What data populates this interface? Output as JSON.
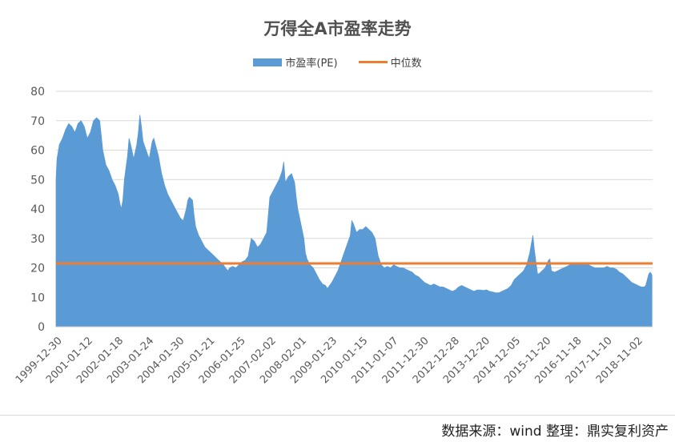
{
  "title": "万得全A市盈率走势",
  "legend": {
    "area_label": "市盈率(PE)",
    "line_label": "中位数"
  },
  "source_note": "数据来源：wind  整理：鼎实复利资产",
  "colors": {
    "area": "#5b9bd5",
    "median": "#ed7d31",
    "grid": "#d9d9d9"
  },
  "chart_data": {
    "type": "area",
    "title": "万得全A市盈率走势",
    "ylim": [
      0,
      80
    ],
    "yticks": [
      0,
      10,
      20,
      30,
      40,
      50,
      60,
      70,
      80
    ],
    "grid": true,
    "legend_position": "top",
    "x_tick_labels": [
      "1999-12-30",
      "2001-01-12",
      "2002-01-18",
      "2003-01-24",
      "2004-01-30",
      "2005-01-21",
      "2006-01-25",
      "2007-02-02",
      "2008-02-01",
      "2009-01-23",
      "2010-01-15",
      "2011-01-07",
      "2011-12-30",
      "2012-12-28",
      "2013-12-20",
      "2014-12-05",
      "2015-11-20",
      "2016-11-18",
      "2017-11-10",
      "2018-11-02"
    ],
    "series": [
      {
        "name": "市盈率(PE)",
        "type": "area",
        "points": [
          [
            1999.99,
            50
          ],
          [
            2000.02,
            57
          ],
          [
            2000.1,
            62
          ],
          [
            2000.2,
            64
          ],
          [
            2000.3,
            67
          ],
          [
            2000.4,
            69
          ],
          [
            2000.5,
            68
          ],
          [
            2000.6,
            66
          ],
          [
            2000.7,
            69
          ],
          [
            2000.8,
            70
          ],
          [
            2000.9,
            68
          ],
          [
            2001.0,
            64
          ],
          [
            2001.1,
            66
          ],
          [
            2001.2,
            70
          ],
          [
            2001.3,
            71
          ],
          [
            2001.4,
            70
          ],
          [
            2001.45,
            65
          ],
          [
            2001.5,
            60
          ],
          [
            2001.6,
            55
          ],
          [
            2001.7,
            53
          ],
          [
            2001.8,
            50
          ],
          [
            2001.9,
            48
          ],
          [
            2002.0,
            45
          ],
          [
            2002.05,
            42
          ],
          [
            2002.1,
            40
          ],
          [
            2002.15,
            43
          ],
          [
            2002.2,
            50
          ],
          [
            2002.3,
            58
          ],
          [
            2002.35,
            64
          ],
          [
            2002.4,
            62
          ],
          [
            2002.5,
            57
          ],
          [
            2002.6,
            62
          ],
          [
            2002.65,
            66
          ],
          [
            2002.7,
            72
          ],
          [
            2002.75,
            68
          ],
          [
            2002.8,
            63
          ],
          [
            2002.9,
            60
          ],
          [
            2003.0,
            57
          ],
          [
            2003.1,
            63
          ],
          [
            2003.15,
            64
          ],
          [
            2003.2,
            62
          ],
          [
            2003.3,
            58
          ],
          [
            2003.4,
            52
          ],
          [
            2003.5,
            48
          ],
          [
            2003.6,
            45
          ],
          [
            2003.7,
            43
          ],
          [
            2003.8,
            41
          ],
          [
            2003.9,
            39
          ],
          [
            2004.0,
            37
          ],
          [
            2004.1,
            36
          ],
          [
            2004.2,
            40
          ],
          [
            2004.25,
            43
          ],
          [
            2004.3,
            44
          ],
          [
            2004.4,
            43
          ],
          [
            2004.45,
            38
          ],
          [
            2004.5,
            34
          ],
          [
            2004.6,
            31
          ],
          [
            2004.7,
            29
          ],
          [
            2004.8,
            27
          ],
          [
            2004.9,
            26
          ],
          [
            2005.0,
            25
          ],
          [
            2005.1,
            24
          ],
          [
            2005.2,
            23
          ],
          [
            2005.3,
            22
          ],
          [
            2005.4,
            21
          ],
          [
            2005.5,
            19.5
          ],
          [
            2005.55,
            19
          ],
          [
            2005.6,
            20
          ],
          [
            2005.7,
            20.5
          ],
          [
            2005.8,
            20
          ],
          [
            2005.9,
            21
          ],
          [
            2006.0,
            22
          ],
          [
            2006.1,
            22.5
          ],
          [
            2006.2,
            24
          ],
          [
            2006.25,
            27
          ],
          [
            2006.3,
            30
          ],
          [
            2006.4,
            29
          ],
          [
            2006.45,
            28
          ],
          [
            2006.5,
            27
          ],
          [
            2006.6,
            28
          ],
          [
            2006.7,
            30
          ],
          [
            2006.8,
            32
          ],
          [
            2006.85,
            38
          ],
          [
            2006.9,
            44
          ],
          [
            2007.0,
            46
          ],
          [
            2007.1,
            48
          ],
          [
            2007.2,
            50
          ],
          [
            2007.3,
            53
          ],
          [
            2007.35,
            56
          ],
          [
            2007.4,
            49
          ],
          [
            2007.5,
            51
          ],
          [
            2007.6,
            52
          ],
          [
            2007.7,
            49
          ],
          [
            2007.75,
            44
          ],
          [
            2007.8,
            40
          ],
          [
            2007.9,
            35
          ],
          [
            2008.0,
            30
          ],
          [
            2008.05,
            25
          ],
          [
            2008.1,
            23
          ],
          [
            2008.2,
            21
          ],
          [
            2008.3,
            20
          ],
          [
            2008.4,
            18
          ],
          [
            2008.5,
            16
          ],
          [
            2008.6,
            14.5
          ],
          [
            2008.7,
            14
          ],
          [
            2008.75,
            13
          ],
          [
            2008.8,
            13.5
          ],
          [
            2008.9,
            15
          ],
          [
            2009.0,
            17
          ],
          [
            2009.1,
            19
          ],
          [
            2009.2,
            22
          ],
          [
            2009.3,
            25
          ],
          [
            2009.4,
            28
          ],
          [
            2009.5,
            31
          ],
          [
            2009.55,
            36
          ],
          [
            2009.6,
            35
          ],
          [
            2009.7,
            32
          ],
          [
            2009.8,
            33
          ],
          [
            2009.9,
            33
          ],
          [
            2010.0,
            34
          ],
          [
            2010.1,
            33
          ],
          [
            2010.2,
            32
          ],
          [
            2010.3,
            30
          ],
          [
            2010.35,
            27
          ],
          [
            2010.4,
            24
          ],
          [
            2010.5,
            21
          ],
          [
            2010.6,
            20
          ],
          [
            2010.7,
            20.5
          ],
          [
            2010.8,
            20
          ],
          [
            2010.9,
            21
          ],
          [
            2011.0,
            20.5
          ],
          [
            2011.1,
            20
          ],
          [
            2011.2,
            20
          ],
          [
            2011.3,
            19.5
          ],
          [
            2011.4,
            19
          ],
          [
            2011.5,
            18.5
          ],
          [
            2011.6,
            17.5
          ],
          [
            2011.7,
            17
          ],
          [
            2011.8,
            16
          ],
          [
            2011.9,
            15
          ],
          [
            2012.0,
            14.5
          ],
          [
            2012.1,
            14
          ],
          [
            2012.2,
            14.5
          ],
          [
            2012.3,
            14
          ],
          [
            2012.4,
            13.5
          ],
          [
            2012.5,
            13.5
          ],
          [
            2012.6,
            13
          ],
          [
            2012.7,
            12.5
          ],
          [
            2012.8,
            12
          ],
          [
            2012.9,
            12.5
          ],
          [
            2013.0,
            13.5
          ],
          [
            2013.1,
            14
          ],
          [
            2013.2,
            13.5
          ],
          [
            2013.3,
            13
          ],
          [
            2013.4,
            12.5
          ],
          [
            2013.5,
            12
          ],
          [
            2013.6,
            12.5
          ],
          [
            2013.7,
            12.5
          ],
          [
            2013.8,
            12.3
          ],
          [
            2013.9,
            12.5
          ],
          [
            2014.0,
            12
          ],
          [
            2014.1,
            11.8
          ],
          [
            2014.2,
            11.5
          ],
          [
            2014.3,
            11.5
          ],
          [
            2014.4,
            12
          ],
          [
            2014.5,
            12.5
          ],
          [
            2014.6,
            13
          ],
          [
            2014.7,
            14
          ],
          [
            2014.8,
            16
          ],
          [
            2014.9,
            17
          ],
          [
            2015.0,
            18
          ],
          [
            2015.1,
            19
          ],
          [
            2015.2,
            21
          ],
          [
            2015.3,
            25
          ],
          [
            2015.35,
            28
          ],
          [
            2015.4,
            31
          ],
          [
            2015.45,
            26
          ],
          [
            2015.5,
            22
          ],
          [
            2015.55,
            18
          ],
          [
            2015.6,
            18
          ],
          [
            2015.7,
            19
          ],
          [
            2015.8,
            20
          ],
          [
            2015.9,
            22.5
          ],
          [
            2015.95,
            23
          ],
          [
            2016.0,
            19
          ],
          [
            2016.1,
            18.5
          ],
          [
            2016.2,
            19
          ],
          [
            2016.3,
            19.5
          ],
          [
            2016.4,
            20
          ],
          [
            2016.5,
            20.5
          ],
          [
            2016.6,
            21
          ],
          [
            2016.7,
            21
          ],
          [
            2016.8,
            21.5
          ],
          [
            2016.9,
            21.5
          ],
          [
            2017.0,
            21
          ],
          [
            2017.1,
            21
          ],
          [
            2017.2,
            21
          ],
          [
            2017.3,
            20.5
          ],
          [
            2017.4,
            20
          ],
          [
            2017.5,
            20
          ],
          [
            2017.6,
            20
          ],
          [
            2017.7,
            20
          ],
          [
            2017.8,
            20.5
          ],
          [
            2017.9,
            20
          ],
          [
            2018.0,
            20
          ],
          [
            2018.1,
            19.5
          ],
          [
            2018.2,
            18.5
          ],
          [
            2018.3,
            18
          ],
          [
            2018.4,
            17
          ],
          [
            2018.5,
            16
          ],
          [
            2018.6,
            15
          ],
          [
            2018.7,
            14.5
          ],
          [
            2018.8,
            14
          ],
          [
            2018.9,
            13.5
          ],
          [
            2019.0,
            13.5
          ],
          [
            2019.05,
            14
          ],
          [
            2019.1,
            16
          ],
          [
            2019.15,
            18
          ],
          [
            2019.2,
            18.5
          ],
          [
            2019.25,
            17.5
          ]
        ]
      },
      {
        "name": "中位数",
        "type": "line",
        "value": 21.5
      }
    ]
  }
}
